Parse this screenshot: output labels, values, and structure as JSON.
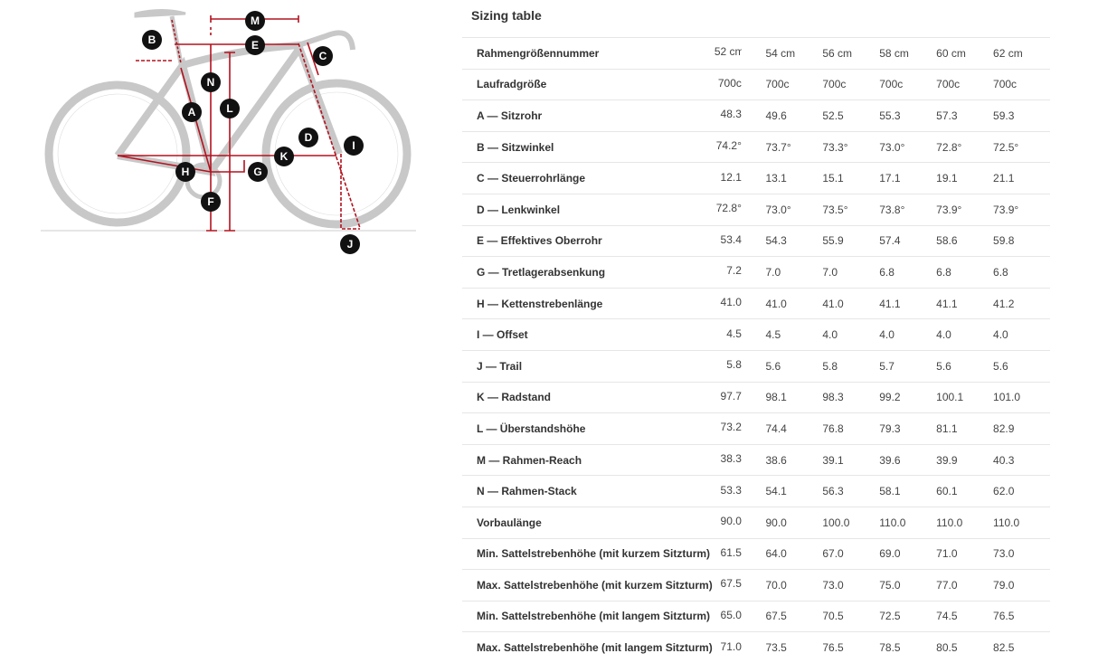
{
  "title": "Sizing table",
  "colors": {
    "measure_red": "#b3121f",
    "bike_gray": "#c8c8c8",
    "badge": "#111111"
  },
  "diagram_labels": [
    "A",
    "B",
    "C",
    "D",
    "E",
    "F",
    "G",
    "H",
    "I",
    "J",
    "K",
    "L",
    "M",
    "N"
  ],
  "rows": [
    {
      "label": "Rahmengrößennummer",
      "values": [
        "52 cm",
        "54 cm",
        "56 cm",
        "58 cm",
        "60 cm",
        "62 cm"
      ]
    },
    {
      "label": "Laufradgröße",
      "values": [
        "700c",
        "700c",
        "700c",
        "700c",
        "700c",
        "700c"
      ]
    },
    {
      "label": "A — Sitzrohr",
      "values": [
        "48.3",
        "49.6",
        "52.5",
        "55.3",
        "57.3",
        "59.3"
      ]
    },
    {
      "label": "B — Sitzwinkel",
      "values": [
        "74.2°",
        "73.7°",
        "73.3°",
        "73.0°",
        "72.8°",
        "72.5°"
      ]
    },
    {
      "label": "C — Steuerrohrlänge",
      "values": [
        "12.1",
        "13.1",
        "15.1",
        "17.1",
        "19.1",
        "21.1"
      ]
    },
    {
      "label": "D — Lenkwinkel",
      "values": [
        "72.8°",
        "73.0°",
        "73.5°",
        "73.8°",
        "73.9°",
        "73.9°"
      ]
    },
    {
      "label": "E — Effektives Oberrohr",
      "values": [
        "53.4",
        "54.3",
        "55.9",
        "57.4",
        "58.6",
        "59.8"
      ]
    },
    {
      "label": "G — Tretlagerabsenkung",
      "values": [
        "7.2",
        "7.0",
        "7.0",
        "6.8",
        "6.8",
        "6.8"
      ]
    },
    {
      "label": "H — Kettenstrebenlänge",
      "values": [
        "41.0",
        "41.0",
        "41.0",
        "41.1",
        "41.1",
        "41.2"
      ]
    },
    {
      "label": "I — Offset",
      "values": [
        "4.5",
        "4.5",
        "4.0",
        "4.0",
        "4.0",
        "4.0"
      ]
    },
    {
      "label": "J — Trail",
      "values": [
        "5.8",
        "5.6",
        "5.8",
        "5.7",
        "5.6",
        "5.6"
      ]
    },
    {
      "label": "K — Radstand",
      "values": [
        "97.7",
        "98.1",
        "98.3",
        "99.2",
        "100.1",
        "101.0"
      ]
    },
    {
      "label": "L — Überstandshöhe",
      "values": [
        "73.2",
        "74.4",
        "76.8",
        "79.3",
        "81.1",
        "82.9"
      ]
    },
    {
      "label": "M — Rahmen-Reach",
      "values": [
        "38.3",
        "38.6",
        "39.1",
        "39.6",
        "39.9",
        "40.3"
      ]
    },
    {
      "label": "N — Rahmen-Stack",
      "values": [
        "53.3",
        "54.1",
        "56.3",
        "58.1",
        "60.1",
        "62.0"
      ]
    },
    {
      "label": "Vorbaulänge",
      "values": [
        "90.0",
        "90.0",
        "100.0",
        "110.0",
        "110.0",
        "110.0"
      ]
    },
    {
      "label": "Min. Sattelstrebenhöhe (mit kurzem Sitzturm)",
      "values": [
        "61.5",
        "64.0",
        "67.0",
        "69.0",
        "71.0",
        "73.0"
      ]
    },
    {
      "label": "Max. Sattelstrebenhöhe (mit kurzem Sitzturm)",
      "values": [
        "67.5",
        "70.0",
        "73.0",
        "75.0",
        "77.0",
        "79.0"
      ]
    },
    {
      "label": "Min. Sattelstrebenhöhe (mit langem Sitzturm)",
      "values": [
        "65.0",
        "67.5",
        "70.5",
        "72.5",
        "74.5",
        "76.5"
      ]
    },
    {
      "label": "Max. Sattelstrebenhöhe (mit langem Sitzturm)",
      "values": [
        "71.0",
        "73.5",
        "76.5",
        "78.5",
        "80.5",
        "82.5"
      ]
    }
  ]
}
